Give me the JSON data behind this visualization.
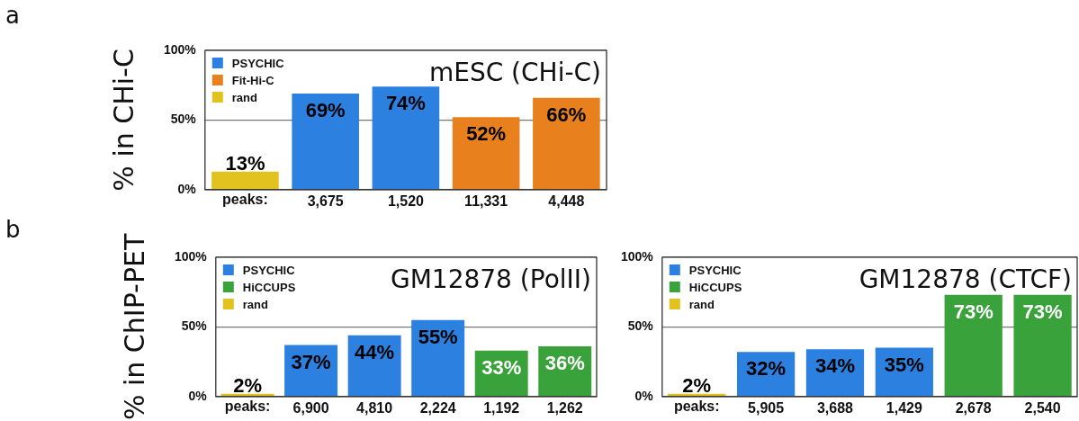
{
  "chart_data": [
    {
      "type": "bar",
      "title": "mESC (CHi-C)",
      "ylabel": "% in CHi-C",
      "annotations": [
        "a"
      ],
      "xlabel": "peaks:",
      "categories": [
        null,
        "3,675",
        "1,520",
        "11,331",
        "4,448"
      ],
      "series": [
        {
          "name": "PSYCHIC",
          "color": "#2b80e0",
          "values": [
            null,
            69,
            74,
            null,
            null
          ],
          "value_labels": [
            null,
            "69%",
            "74%",
            null,
            null
          ]
        },
        {
          "name": "Fit-Hi-C",
          "color": "#e8801e",
          "values": [
            null,
            null,
            null,
            52,
            66
          ],
          "value_labels": [
            null,
            null,
            null,
            "52%",
            "66%"
          ]
        },
        {
          "name": "rand",
          "color": "#e2c21e",
          "values": [
            13,
            null,
            null,
            null,
            null
          ],
          "value_labels": [
            "13%",
            null,
            null,
            null,
            null
          ]
        }
      ],
      "ylim": [
        0,
        100
      ],
      "yticks": [
        {
          "value": 0,
          "label": "0%"
        },
        {
          "value": 50,
          "label": "50%"
        },
        {
          "value": 100,
          "label": "100%"
        }
      ],
      "grid": "y",
      "legend": "top left"
    },
    {
      "type": "bar",
      "title": "GM12878 (PolII)",
      "ylabel": "% in ChIP-PET",
      "annotations": [
        "b"
      ],
      "xlabel": "peaks:",
      "categories": [
        null,
        "6,900",
        "4,810",
        "2,224",
        "1,192",
        "1,262"
      ],
      "series": [
        {
          "name": "PSYCHIC",
          "color": "#2b80e0",
          "values": [
            null,
            37,
            44,
            55,
            null,
            null
          ],
          "value_labels": [
            null,
            "37%",
            "44%",
            "55%",
            null,
            null
          ]
        },
        {
          "name": "HiCCUPS",
          "color": "#3aa23a",
          "values": [
            null,
            null,
            null,
            null,
            33,
            36
          ],
          "value_labels": [
            null,
            null,
            null,
            null,
            "33%",
            "36%"
          ]
        },
        {
          "name": "rand",
          "color": "#e2c21e",
          "values": [
            2,
            null,
            null,
            null,
            null,
            null
          ],
          "value_labels": [
            "2%",
            null,
            null,
            null,
            null,
            null
          ]
        }
      ],
      "ylim": [
        0,
        100
      ],
      "yticks": [
        {
          "value": 0,
          "label": "0%"
        },
        {
          "value": 50,
          "label": "50%"
        },
        {
          "value": 100,
          "label": "100%"
        }
      ],
      "grid": "y",
      "legend": "top left"
    },
    {
      "type": "bar",
      "title": "GM12878 (CTCF)",
      "xlabel": "peaks:",
      "categories": [
        null,
        "5,905",
        "3,688",
        "1,429",
        "2,678",
        "2,540"
      ],
      "series": [
        {
          "name": "PSYCHIC",
          "color": "#2b80e0",
          "values": [
            null,
            32,
            34,
            35,
            null,
            null
          ],
          "value_labels": [
            null,
            "32%",
            "34%",
            "35%",
            null,
            null
          ]
        },
        {
          "name": "HiCCUPS",
          "color": "#3aa23a",
          "values": [
            null,
            null,
            null,
            null,
            73,
            73
          ],
          "value_labels": [
            null,
            null,
            null,
            null,
            "73%",
            "73%"
          ]
        },
        {
          "name": "rand",
          "color": "#e2c21e",
          "values": [
            2,
            null,
            null,
            null,
            null,
            null
          ],
          "value_labels": [
            "2%",
            null,
            null,
            null,
            null,
            null
          ]
        }
      ],
      "ylim": [
        0,
        100
      ],
      "yticks": [
        {
          "value": 0,
          "label": "0%"
        },
        {
          "value": 50,
          "label": "50%"
        },
        {
          "value": 100,
          "label": "100%"
        }
      ],
      "grid": "y",
      "legend": "top left"
    }
  ]
}
